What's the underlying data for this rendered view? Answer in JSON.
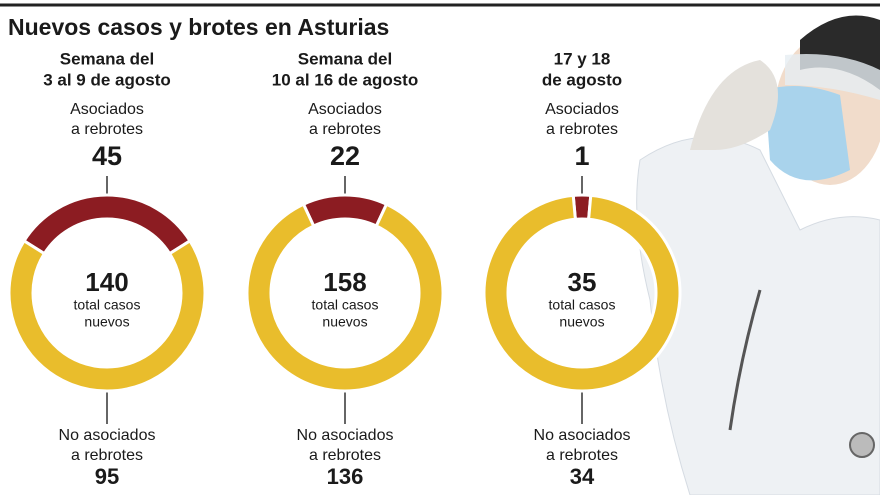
{
  "title": "Nuevos casos y brotes en Asturias",
  "chart_data": [
    {
      "type": "donut",
      "title": [
        "Semana del",
        "3 al 9 de agosto"
      ],
      "categories": [
        [
          "Asociados",
          "a rebrotes"
        ],
        [
          "No asociados",
          "a rebrotes"
        ]
      ],
      "values": [
        45,
        95
      ],
      "colors": [
        "#8c1c22",
        "#e9bd2c"
      ],
      "total": 140,
      "center_label": [
        "total casos",
        "nuevos"
      ]
    },
    {
      "type": "donut",
      "title": [
        "Semana del",
        "10 al 16 de agosto"
      ],
      "categories": [
        [
          "Asociados",
          "a rebrotes"
        ],
        [
          "No asociados",
          "a rebrotes"
        ]
      ],
      "values": [
        22,
        136
      ],
      "colors": [
        "#8c1c22",
        "#e9bd2c"
      ],
      "total": 158,
      "center_label": [
        "total casos",
        "nuevos"
      ]
    },
    {
      "type": "donut",
      "title": [
        "17 y 18",
        "de agosto"
      ],
      "categories": [
        [
          "Asociados",
          "a rebrotes"
        ],
        [
          "No asociados",
          "a rebrotes"
        ]
      ],
      "values": [
        1,
        34
      ],
      "colors": [
        "#8c1c22",
        "#e9bd2c"
      ],
      "total": 35,
      "center_label": [
        "total casos",
        "nuevos"
      ]
    }
  ]
}
